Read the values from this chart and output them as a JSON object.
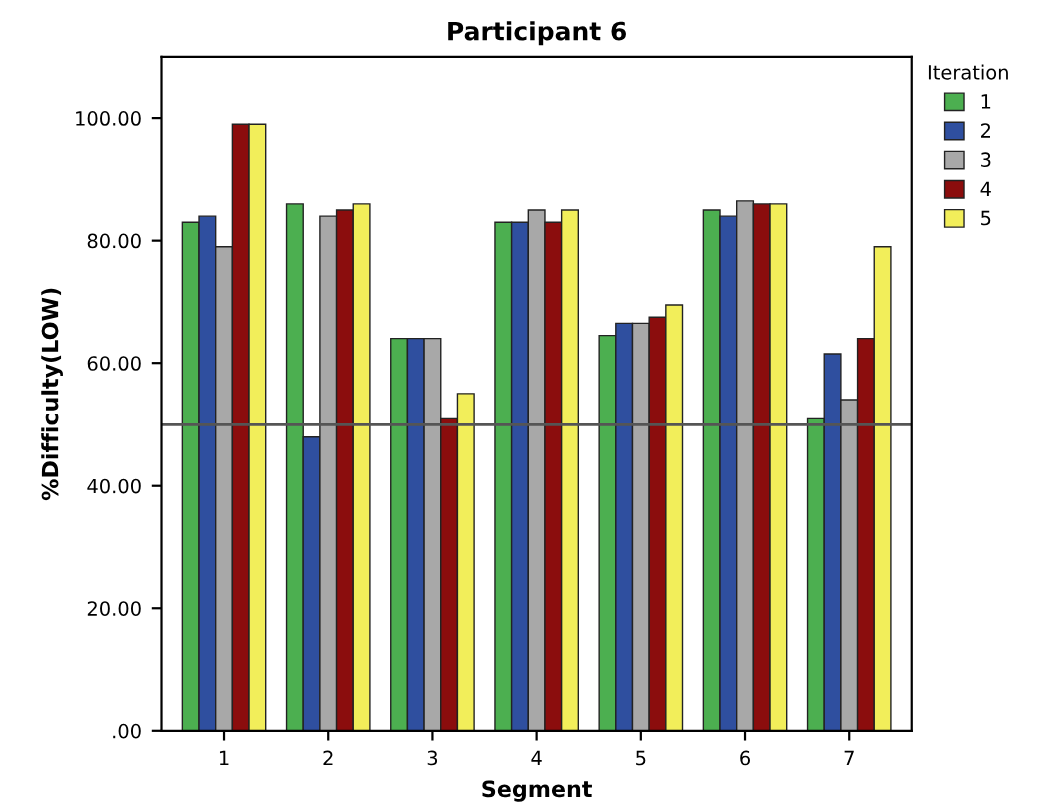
{
  "chart_data": {
    "type": "bar",
    "title": "Participant 6",
    "xlabel": "Segment",
    "ylabel": "%Difficulty(LOW)",
    "legend_title": "Iteration",
    "categories": [
      "1",
      "2",
      "3",
      "4",
      "5",
      "6",
      "7"
    ],
    "series": [
      {
        "name": "1",
        "color": "#4caf50",
        "values": [
          83,
          86,
          64,
          83,
          64.5,
          85,
          51
        ]
      },
      {
        "name": "2",
        "color": "#2f4f9f",
        "values": [
          84,
          48,
          64,
          83,
          66.5,
          84,
          61.5
        ]
      },
      {
        "name": "3",
        "color": "#a8a8a8",
        "values": [
          79,
          84,
          64,
          85,
          66.5,
          86.5,
          54
        ]
      },
      {
        "name": "4",
        "color": "#8b0d0d",
        "values": [
          99,
          85,
          51,
          83,
          67.5,
          86,
          64
        ]
      },
      {
        "name": "5",
        "color": "#f2ee5a",
        "values": [
          99,
          86,
          55,
          85,
          69.5,
          86,
          79
        ]
      }
    ],
    "ylim": [
      0,
      110
    ],
    "yticks": [
      {
        "value": 0,
        "label": ".00"
      },
      {
        "value": 20,
        "label": "20.00"
      },
      {
        "value": 40,
        "label": "40.00"
      },
      {
        "value": 60,
        "label": "60.00"
      },
      {
        "value": 80,
        "label": "80.00"
      },
      {
        "value": 100,
        "label": "100.00"
      }
    ],
    "ref_lines": [
      {
        "axis": "y",
        "value": 50,
        "label": null,
        "color": "#555555"
      }
    ],
    "grid": false,
    "legend": "right"
  }
}
